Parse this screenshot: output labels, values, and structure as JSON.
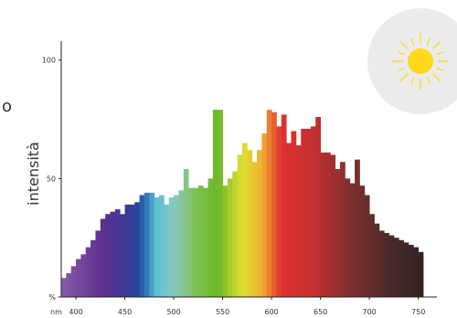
{
  "chart_data": {
    "type": "histogram",
    "side_text": "o",
    "ylabel": "intensità",
    "xlabel": "nm",
    "bins": [
      385,
      390,
      395,
      400,
      405,
      410,
      415,
      420,
      425,
      430,
      435,
      440,
      445,
      450,
      455,
      460,
      465,
      470,
      475,
      480,
      485,
      490,
      495,
      500,
      505,
      510,
      515,
      520,
      525,
      530,
      535,
      540,
      545,
      550,
      555,
      560,
      565,
      570,
      575,
      580,
      585,
      590,
      595,
      600,
      605,
      610,
      615,
      620,
      625,
      630,
      635,
      640,
      645,
      650,
      655,
      660,
      665,
      670,
      675,
      680,
      685,
      690,
      695,
      700,
      705,
      710,
      715,
      720,
      725,
      730,
      735,
      740,
      745,
      750,
      755
    ],
    "values": [
      8,
      10,
      13,
      16,
      18,
      21,
      24,
      28,
      33,
      35,
      36,
      37,
      35,
      39,
      39,
      40,
      43,
      44,
      44,
      42,
      43,
      39,
      42,
      43,
      45,
      54,
      46,
      46,
      47,
      46,
      50,
      79,
      79,
      47,
      50,
      53,
      60,
      65,
      62,
      57,
      62,
      69,
      79,
      78,
      72,
      77,
      65,
      70,
      64,
      71,
      71,
      72,
      76,
      61,
      61,
      60,
      54,
      57,
      50,
      48,
      58,
      47,
      43,
      35,
      31,
      28,
      27,
      26,
      25,
      24,
      23,
      22,
      21,
      19
    ],
    "xlim": [
      385,
      769
    ],
    "ylim": [
      0,
      108
    ],
    "xticks": [
      400,
      450,
      500,
      550,
      600,
      650,
      700,
      750
    ],
    "yticks": [
      {
        "value": 0,
        "label": "%"
      },
      50,
      100
    ]
  }
}
